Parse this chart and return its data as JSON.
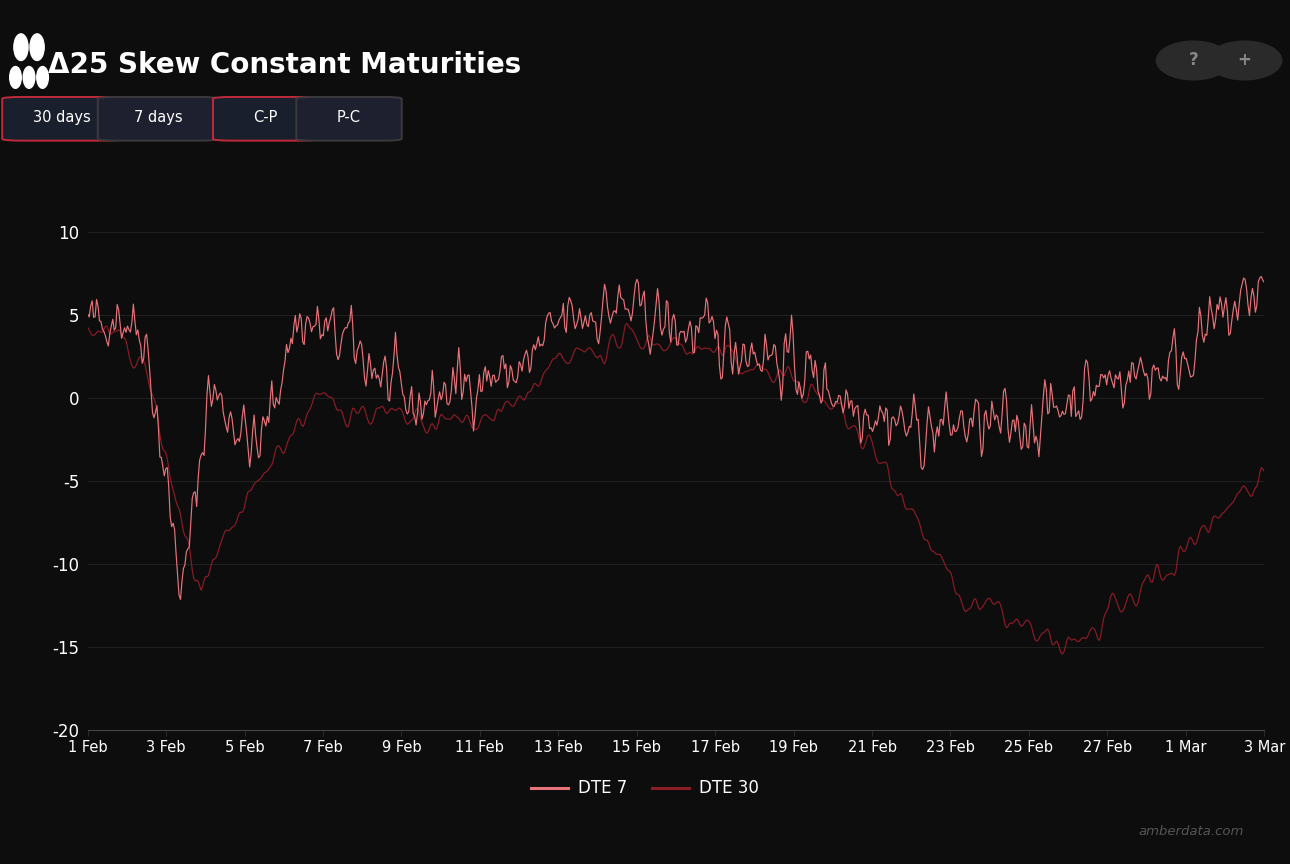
{
  "title": "Δ25 Skew Constant Maturities",
  "background_color": "#0d0d0d",
  "plot_bg_color": "#0d0d0d",
  "text_color": "#ffffff",
  "grid_color": "#2a2a2a",
  "dte7_color": "#e8737a",
  "dte30_color": "#8b1c24",
  "ylim": [
    -20,
    12
  ],
  "yticks": [
    10,
    5,
    0,
    -5,
    -10,
    -15,
    -20
  ],
  "x_labels": [
    "1 Feb",
    "3 Feb",
    "5 Feb",
    "7 Feb",
    "9 Feb",
    "11 Feb",
    "13 Feb",
    "15 Feb",
    "17 Feb",
    "19 Feb",
    "21 Feb",
    "23 Feb",
    "25 Feb",
    "27 Feb",
    "1 Mar",
    "3 Mar"
  ],
  "watermark": "amberdata.com",
  "legend_entries": [
    "DTE 7",
    "DTE 30"
  ],
  "buttons": [
    "30 days",
    "7 days",
    "C-P",
    "P-C"
  ],
  "button_active": [
    0,
    2
  ]
}
